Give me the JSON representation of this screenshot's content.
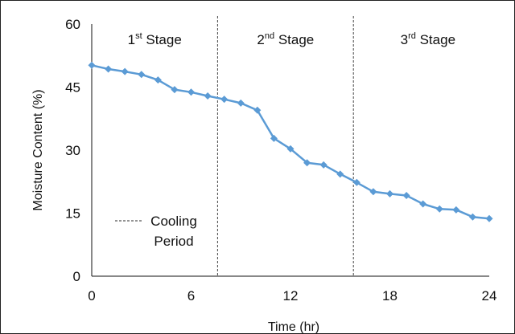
{
  "chart_data": {
    "type": "line",
    "xlabel": "Time (hr)",
    "ylabel": "Moisture Content (%)",
    "xlim": [
      0,
      24
    ],
    "ylim": [
      0,
      60
    ],
    "xticks": [
      0,
      6,
      12,
      18,
      24
    ],
    "yticks": [
      0,
      15,
      30,
      45,
      60
    ],
    "grid": false,
    "series": [
      {
        "color": "#5b9bd5",
        "marker": "diamond",
        "x": [
          0,
          1,
          2,
          3,
          4,
          5,
          6,
          7,
          8,
          9,
          10,
          11,
          12,
          13,
          14,
          15,
          16,
          17,
          18,
          19,
          20,
          21,
          22,
          23,
          24
        ],
        "y": [
          50.2,
          49.3,
          48.7,
          48.0,
          46.7,
          44.4,
          43.8,
          42.9,
          42.1,
          41.2,
          39.5,
          32.8,
          30.3,
          27.0,
          26.5,
          24.3,
          22.3,
          20.1,
          19.6,
          19.2,
          17.2,
          16.0,
          15.8,
          14.1,
          13.7
        ]
      }
    ],
    "stage_dividers": [
      7.6,
      15.8
    ],
    "stages": [
      {
        "base": "1",
        "sup": "st",
        "rest": " Stage",
        "x_center": 3.8
      },
      {
        "base": "2",
        "sup": "nd",
        "rest": " Stage",
        "x_center": 11.7
      },
      {
        "base": "3",
        "sup": "rd",
        "rest": " Stage",
        "x_center": 20.3
      }
    ],
    "legend": {
      "style": "dashed",
      "label_lines": [
        "Cooling",
        "Period"
      ],
      "placement": "bottom-left"
    }
  }
}
